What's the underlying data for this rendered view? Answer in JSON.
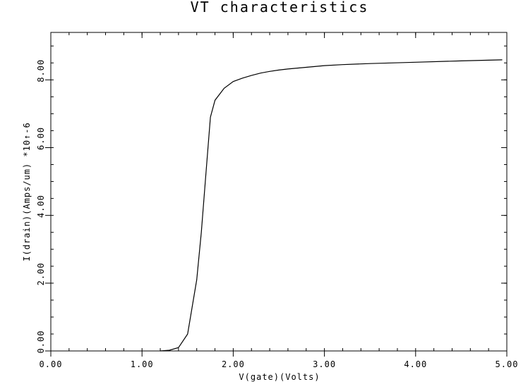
{
  "chart_data": {
    "type": "line",
    "title": "VT characteristics",
    "xlabel": "V(gate)(Volts)",
    "ylabel": "I(drain)(Amps/um) *10↑-6",
    "xlim": [
      0,
      5.0
    ],
    "ylim": [
      0,
      9.4
    ],
    "x_ticks": [
      {
        "value": 0,
        "label": "0.00"
      },
      {
        "value": 1,
        "label": "1.00"
      },
      {
        "value": 2,
        "label": "2.00"
      },
      {
        "value": 3,
        "label": "3.00"
      },
      {
        "value": 4,
        "label": "4.00"
      },
      {
        "value": 5,
        "label": "5.00"
      }
    ],
    "y_ticks": [
      {
        "value": 0.0,
        "label": "0.00"
      },
      {
        "value": 2.0,
        "label": "2.00"
      },
      {
        "value": 4.0,
        "label": "4.00"
      },
      {
        "value": 6.0,
        "label": "6.00"
      },
      {
        "value": 8.0,
        "label": "8.00"
      }
    ],
    "x_minor_step": 0.2,
    "y_minor_step": 0.5,
    "grid": false,
    "series": [
      {
        "values": [
          [
            1.2,
            0.0
          ],
          [
            1.3,
            0.02
          ],
          [
            1.4,
            0.1
          ],
          [
            1.5,
            0.5
          ],
          [
            1.6,
            2.1
          ],
          [
            1.65,
            3.5
          ],
          [
            1.7,
            5.2
          ],
          [
            1.75,
            6.9
          ],
          [
            1.8,
            7.4
          ],
          [
            1.9,
            7.75
          ],
          [
            2.0,
            7.95
          ],
          [
            2.1,
            8.05
          ],
          [
            2.2,
            8.13
          ],
          [
            2.3,
            8.2
          ],
          [
            2.4,
            8.25
          ],
          [
            2.5,
            8.29
          ],
          [
            2.6,
            8.32
          ],
          [
            2.8,
            8.37
          ],
          [
            3.0,
            8.42
          ],
          [
            3.2,
            8.45
          ],
          [
            3.5,
            8.48
          ],
          [
            4.0,
            8.52
          ],
          [
            4.5,
            8.56
          ],
          [
            4.95,
            8.59
          ]
        ]
      }
    ]
  }
}
